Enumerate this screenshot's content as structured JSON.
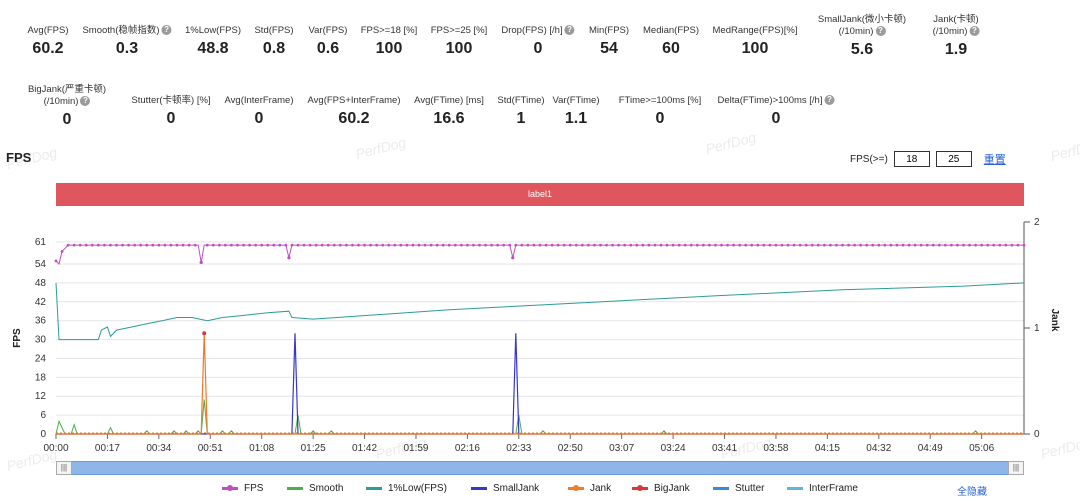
{
  "stats_row1": [
    {
      "label": "Avg(FPS)",
      "value": "60.2",
      "help": false
    },
    {
      "label": "Smooth(稳帧指数)",
      "value": "0.3",
      "help": true
    },
    {
      "label": "1%Low(FPS)",
      "value": "48.8",
      "help": false
    },
    {
      "label": "Std(FPS)",
      "value": "0.8",
      "help": false
    },
    {
      "label": "Var(FPS)",
      "value": "0.6",
      "help": false
    },
    {
      "label": "FPS>=18 [%]",
      "value": "100",
      "help": false
    },
    {
      "label": "FPS>=25 [%]",
      "value": "100",
      "help": false
    },
    {
      "label": "Drop(FPS) [/h]",
      "value": "0",
      "help": true
    },
    {
      "label": "Min(FPS)",
      "value": "54",
      "help": false
    },
    {
      "label": "Median(FPS)",
      "value": "60",
      "help": false
    },
    {
      "label": "MedRange(FPS)[%]",
      "value": "100",
      "help": false
    },
    {
      "label": "SmallJank(微小卡顿)",
      "label2": "(/10min)",
      "value": "5.6",
      "help": true
    },
    {
      "label": "Jank(卡顿)",
      "label2": "(/10min)",
      "value": "1.9",
      "help": true
    }
  ],
  "stats_row2": [
    {
      "label": "BigJank(严重卡顿)",
      "label2": "(/10min)",
      "value": "0",
      "help": true
    },
    {
      "label": "Stutter(卡顿率) [%]",
      "value": "0",
      "help": false
    },
    {
      "label": "Avg(InterFrame)",
      "value": "0",
      "help": false
    },
    {
      "label": "Avg(FPS+InterFrame)",
      "value": "60.2",
      "help": false
    },
    {
      "label": "Avg(FTime) [ms]",
      "value": "16.6",
      "help": false
    },
    {
      "label": "Std(FTime)",
      "value": "1",
      "help": false
    },
    {
      "label": "Var(FTime)",
      "value": "1.1",
      "help": false
    },
    {
      "label": "FTime>=100ms [%]",
      "value": "0",
      "help": false
    },
    {
      "label": "Delta(FTime)>100ms [/h]",
      "value": "0",
      "help": true
    }
  ],
  "watermark_text": "PerfDog",
  "chart_title": "FPS",
  "threshold": {
    "label": "FPS(>=)",
    "value1": "18",
    "value2": "25",
    "reset": "重置"
  },
  "label_bar": "label1",
  "legend_hide_all": "全隐藏",
  "chart_data": {
    "type": "line",
    "ylabel": "FPS",
    "y2label": "Jank",
    "yticks": [
      0,
      6,
      12,
      18,
      24,
      30,
      36,
      42,
      48,
      54,
      61
    ],
    "ylim": [
      0,
      61
    ],
    "y2ticks": [
      0,
      1,
      2
    ],
    "y2lim": [
      0,
      2
    ],
    "xlim": [
      0,
      320
    ],
    "xticks": [
      "00:00",
      "00:17",
      "00:34",
      "00:51",
      "01:08",
      "01:25",
      "01:42",
      "01:59",
      "02:16",
      "02:33",
      "02:50",
      "03:07",
      "03:24",
      "03:41",
      "03:58",
      "04:15",
      "04:32",
      "04:49",
      "05:06"
    ],
    "legend": [
      {
        "name": "FPS",
        "color": "#c04ec0"
      },
      {
        "name": "Smooth",
        "color": "#4cae4c"
      },
      {
        "name": "1%Low(FPS)",
        "color": "#2a9d98"
      },
      {
        "name": "SmallJank",
        "color": "#3838c8"
      },
      {
        "name": "Jank",
        "color": "#ef7b2b"
      },
      {
        "name": "BigJank",
        "color": "#d8383a"
      },
      {
        "name": "Stutter",
        "color": "#3d88d8"
      },
      {
        "name": "InterFrame",
        "color": "#5ab8e0"
      }
    ],
    "fps": {
      "base": 60,
      "start": [
        [
          0,
          55
        ],
        [
          1,
          54
        ],
        [
          2,
          58
        ],
        [
          3,
          59
        ],
        [
          4,
          60
        ]
      ],
      "dips": [
        [
          48,
          54.5
        ],
        [
          77,
          56
        ],
        [
          151,
          56
        ]
      ]
    },
    "low1": [
      [
        0,
        48
      ],
      [
        1,
        30
      ],
      [
        14,
        30
      ],
      [
        15,
        33
      ],
      [
        17,
        34
      ],
      [
        18,
        31
      ],
      [
        20,
        33
      ],
      [
        25,
        34
      ],
      [
        30,
        35
      ],
      [
        35,
        36
      ],
      [
        40,
        37
      ],
      [
        45,
        37
      ],
      [
        50,
        36
      ],
      [
        55,
        37
      ],
      [
        60,
        37.5
      ],
      [
        70,
        38.5
      ],
      [
        77,
        39
      ],
      [
        78,
        37
      ],
      [
        85,
        36.5
      ],
      [
        100,
        37.5
      ],
      [
        130,
        39.5
      ],
      [
        160,
        41
      ],
      [
        190,
        42.5
      ],
      [
        220,
        44
      ],
      [
        260,
        45.8
      ],
      [
        300,
        47
      ],
      [
        320,
        48
      ]
    ],
    "smooth": [
      [
        0,
        0
      ],
      [
        1,
        4
      ],
      [
        2,
        2
      ],
      [
        3,
        0
      ],
      [
        5,
        0
      ],
      [
        6,
        3
      ],
      [
        7,
        0
      ],
      [
        17,
        0
      ],
      [
        18,
        2
      ],
      [
        19,
        0
      ],
      [
        29,
        0
      ],
      [
        30,
        1
      ],
      [
        31,
        0
      ],
      [
        38,
        0
      ],
      [
        39,
        1
      ],
      [
        40,
        0
      ],
      [
        42,
        0
      ],
      [
        43,
        1
      ],
      [
        44,
        0
      ],
      [
        46,
        0
      ],
      [
        47,
        1
      ],
      [
        48,
        0
      ],
      [
        49,
        11
      ],
      [
        50,
        0
      ],
      [
        54,
        0
      ],
      [
        55,
        1
      ],
      [
        56,
        0
      ],
      [
        57,
        0
      ],
      [
        58,
        1
      ],
      [
        59,
        0
      ],
      [
        79,
        0
      ],
      [
        80,
        6
      ],
      [
        81,
        0
      ],
      [
        84,
        0
      ],
      [
        85,
        1
      ],
      [
        86,
        0
      ],
      [
        90,
        0
      ],
      [
        91,
        1
      ],
      [
        92,
        0
      ],
      [
        152,
        0
      ],
      [
        153,
        6
      ],
      [
        154,
        0
      ],
      [
        160,
        0
      ],
      [
        161,
        1
      ],
      [
        162,
        0
      ],
      [
        200,
        0
      ],
      [
        201,
        1
      ],
      [
        202,
        0
      ],
      [
        303,
        0
      ],
      [
        304,
        1
      ],
      [
        305,
        0
      ],
      [
        320,
        0
      ]
    ],
    "smalljank": [
      [
        0,
        0
      ],
      [
        78,
        0
      ],
      [
        79,
        0.95
      ],
      [
        80,
        0
      ],
      [
        151,
        0
      ],
      [
        152,
        0.95
      ],
      [
        153,
        0
      ],
      [
        320,
        0
      ]
    ],
    "jank": [
      [
        0,
        0
      ],
      [
        48,
        0
      ],
      [
        49,
        0.95
      ],
      [
        50,
        0
      ],
      [
        320,
        0
      ]
    ]
  }
}
